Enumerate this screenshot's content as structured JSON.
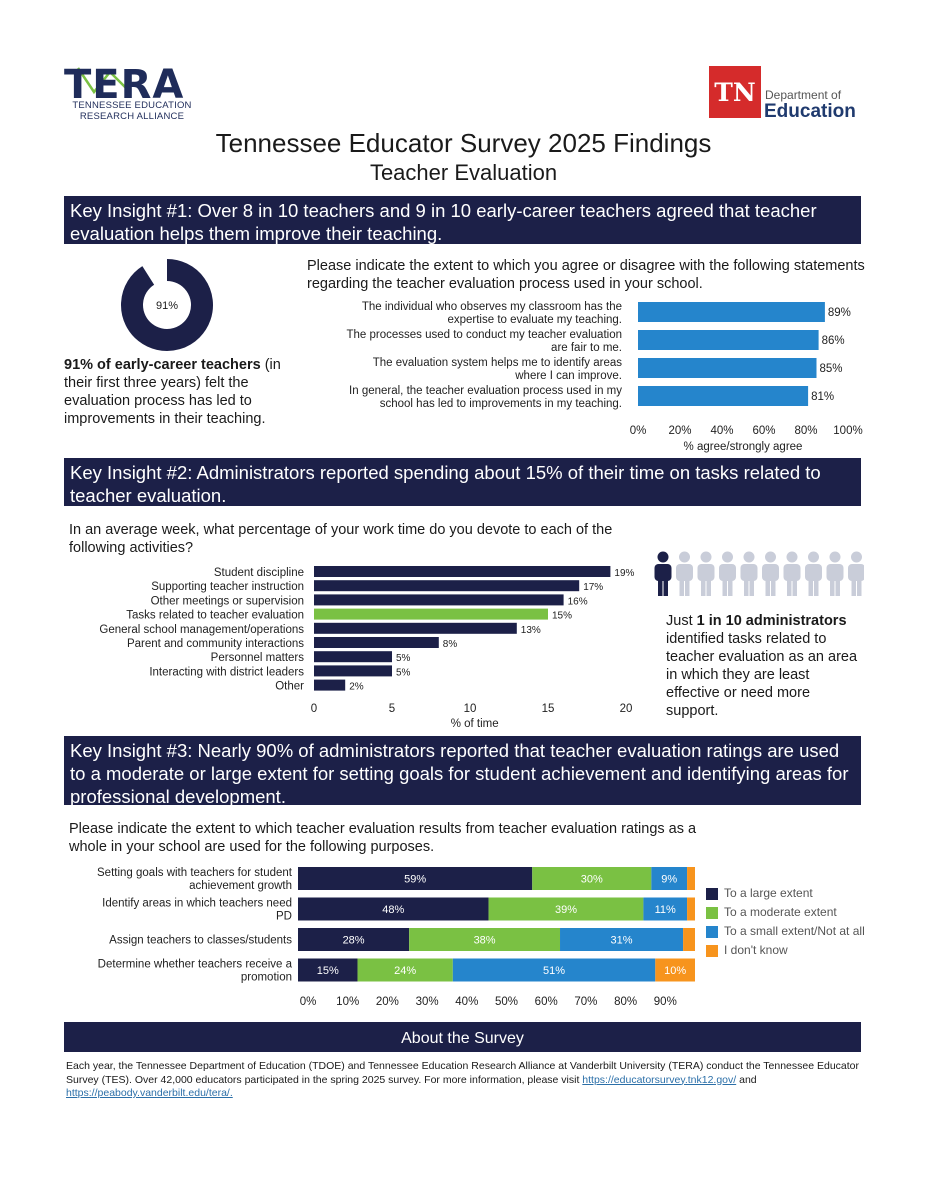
{
  "header": {
    "tera_logo_word": "TERA",
    "tera_logo_sub1": "TENNESSEE EDUCATION",
    "tera_logo_sub2": "RESEARCH ALLIANCE",
    "tn_logo_mark": "TN",
    "tn_logo_dept": "Department of",
    "tn_logo_edu": "Education",
    "title": "Tennessee Educator Survey 2025 Findings",
    "subtitle": "Teacher Evaluation"
  },
  "insight1": {
    "banner": "Key Insight #1: Over 8 in 10 teachers and 9 in 10 early-career teachers agreed that teacher evaluation helps them improve their teaching.",
    "donut_value": 91,
    "donut_label": "91%",
    "callout_bold": "91% of early-career teachers",
    "callout_rest": "(in their first three years) felt the evaluation process has led to improvements in their teaching.",
    "question": "Please indicate the extent to which you agree or disagree with the following statements regarding the teacher evaluation process used in your school."
  },
  "insight2": {
    "banner": "Key Insight #2: Administrators reported spending about 15% of their time on tasks related to teacher evaluation.",
    "question": "In an average week, what percentage of your work time do you devote to each of the following activities?",
    "callout_pre": "Just ",
    "callout_bold": "1 in 10 administrators",
    "callout_rest": " identified tasks related to teacher evaluation as an area in which they are least effective or need more support.",
    "people_total": 10,
    "people_highlighted": 1
  },
  "insight3": {
    "banner": "Key Insight #3: Nearly 90% of administrators reported that teacher evaluation ratings are used to a moderate or large extent for setting goals for student achievement and identifying areas for professional development.",
    "question": "Please indicate the extent to which teacher evaluation results from teacher evaluation ratings as a whole in your school are used for the following purposes."
  },
  "about": {
    "banner": "About the Survey",
    "text": "Each year, the Tennessee Department of Education (TDOE) and Tennessee Education Research Alliance at Vanderbilt University (TERA) conduct the Tennessee Educator Survey (TES). Over 42,000 educators participated in the spring 2025 survey. For more information, please visit ",
    "link1": "https://educatorsurvey.tnk12.gov/",
    "and": " and ",
    "link2": "https://peabody.vanderbilt.edu/tera/."
  },
  "colors": {
    "navy": "#1c2048",
    "blue": "#2585cc",
    "green": "#7ac143",
    "orange": "#f7941d"
  },
  "chart_data": [
    {
      "type": "bar",
      "orientation": "horizontal",
      "categories": [
        [
          "The individual who observes my classroom has the",
          "expertise to evaluate my teaching."
        ],
        [
          "The processes used to conduct my teacher evaluation",
          "are fair to me."
        ],
        [
          "The evaluation system helps me to identify areas",
          "where I can improve."
        ],
        [
          "In general, the teacher evaluation process used in my",
          "school has led to improvements in my teaching."
        ]
      ],
      "values": [
        89,
        86,
        85,
        81
      ],
      "value_labels": [
        "89%",
        "86%",
        "85%",
        "81%"
      ],
      "xlabel": "% agree/strongly agree",
      "xlim": [
        0,
        100
      ],
      "xticks": [
        "0%",
        "20%",
        "40%",
        "60%",
        "80%",
        "100%"
      ],
      "color": "#2585cc"
    },
    {
      "type": "bar",
      "orientation": "horizontal",
      "categories": [
        "Student discipline",
        "Supporting teacher instruction",
        "Other meetings or supervision",
        "Tasks related to teacher evaluation",
        "General school management/operations",
        "Parent and community interactions",
        "Personnel matters",
        "Interacting with district leaders",
        "Other"
      ],
      "values": [
        19,
        17,
        16,
        15,
        13,
        8,
        5,
        5,
        2
      ],
      "value_labels": [
        "19%",
        "17%",
        "16%",
        "15%",
        "13%",
        "8%",
        "5%",
        "5%",
        "2%"
      ],
      "highlight_index": 3,
      "xlabel": "% of time",
      "xlim": [
        0,
        20
      ],
      "xticks": [
        "0",
        "5",
        "10",
        "15",
        "20"
      ]
    },
    {
      "type": "bar",
      "orientation": "horizontal",
      "stacked": true,
      "categories": [
        [
          "Setting goals with teachers for student",
          "achievement growth"
        ],
        [
          "Identify areas in which teachers need",
          "PD"
        ],
        [
          "Assign teachers to classes/students"
        ],
        [
          "Determine whether teachers receive a",
          "promotion"
        ]
      ],
      "series": [
        {
          "name": "To a large extent",
          "color": "#1c2048",
          "values": [
            59,
            48,
            28,
            15
          ],
          "labels": [
            "59%",
            "48%",
            "28%",
            "15%"
          ]
        },
        {
          "name": "To a moderate extent",
          "color": "#7ac143",
          "values": [
            30,
            39,
            38,
            24
          ],
          "labels": [
            "30%",
            "39%",
            "38%",
            "24%"
          ]
        },
        {
          "name": "To a small extent/Not at all",
          "color": "#2585cc",
          "values": [
            9,
            11,
            31,
            51
          ],
          "labels": [
            "9%",
            "11%",
            "31%",
            "51%"
          ]
        },
        {
          "name": "I don't know",
          "color": "#f7941d",
          "values": [
            2,
            2,
            3,
            10
          ],
          "labels": [
            "",
            "",
            "",
            "10%"
          ]
        }
      ],
      "xlim": [
        0,
        100
      ],
      "xticks": [
        "0%",
        "10%",
        "20%",
        "30%",
        "40%",
        "50%",
        "60%",
        "70%",
        "80%",
        "90%"
      ],
      "legend": "right"
    }
  ]
}
